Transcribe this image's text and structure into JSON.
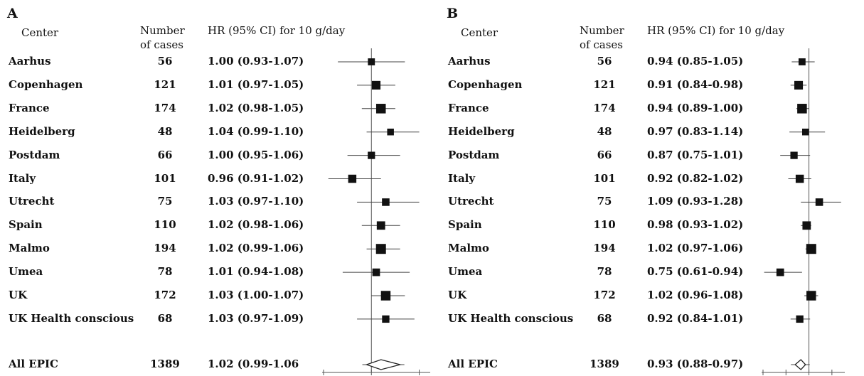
{
  "panels": [
    {
      "letter": "A",
      "headers": {
        "center": "Center",
        "cases_line1": "Number",
        "cases_line2": "of cases",
        "hr": "HR (95% CI) for 10 g/day"
      },
      "rows": [
        {
          "center": "Aarhus",
          "cases": "56",
          "hr": "1.00 (0.93-1.07)"
        },
        {
          "center": "Copenhagen",
          "cases": "121",
          "hr": "1.01 (0.97-1.05)"
        },
        {
          "center": "France",
          "cases": "174",
          "hr": "1.02 (0.98-1.05)"
        },
        {
          "center": "Heidelberg",
          "cases": "48",
          "hr": "1.04 (0.99-1.10)"
        },
        {
          "center": "Postdam",
          "cases": "66",
          "hr": "1.00 (0.95-1.06)"
        },
        {
          "center": "Italy",
          "cases": "101",
          "hr": "0.96 (0.91-1.02)"
        },
        {
          "center": "Utrecht",
          "cases": "75",
          "hr": "1.03 (0.97-1.10)"
        },
        {
          "center": "Spain",
          "cases": "110",
          "hr": "1.02 (0.98-1.06)"
        },
        {
          "center": "Malmo",
          "cases": "194",
          "hr": "1.02 (0.99-1.06)"
        },
        {
          "center": "Umea",
          "cases": "78",
          "hr": "1.01 (0.94-1.08)"
        },
        {
          "center": "UK",
          "cases": "172",
          "hr": "1.03 (1.00-1.07)"
        },
        {
          "center": "UK Health conscious",
          "cases": "68",
          "hr": "1.03 (0.97-1.09)"
        }
      ],
      "total": {
        "center": "All EPIC",
        "cases": "1389",
        "hr": "1.02 (0.99-1.06"
      }
    },
    {
      "letter": "B",
      "headers": {
        "center": "Center",
        "cases_line1": "Number",
        "cases_line2": "of cases",
        "hr": "HR (95% CI) for 10 g/day"
      },
      "rows": [
        {
          "center": "Aarhus",
          "cases": "56",
          "hr": "0.94 (0.85-1.05)"
        },
        {
          "center": "Copenhagen",
          "cases": "121",
          "hr": "0.91 (0.84-0.98)"
        },
        {
          "center": "France",
          "cases": "174",
          "hr": "0.94 (0.89-1.00)"
        },
        {
          "center": "Heidelberg",
          "cases": "48",
          "hr": "0.97 (0.83-1.14)"
        },
        {
          "center": "Postdam",
          "cases": "66",
          "hr": "0.87 (0.75-1.01)"
        },
        {
          "center": "Italy",
          "cases": "101",
          "hr": "0.92 (0.82-1.02)"
        },
        {
          "center": "Utrecht",
          "cases": "75",
          "hr": "1.09 (0.93-1.28)"
        },
        {
          "center": "Spain",
          "cases": "110",
          "hr": "0.98 (0.93-1.02)"
        },
        {
          "center": "Malmo",
          "cases": "194",
          "hr": "1.02 (0.97-1.06)"
        },
        {
          "center": "Umea",
          "cases": "78",
          "hr": "0.75 (0.61-0.94)"
        },
        {
          "center": "UK",
          "cases": "172",
          "hr": "1.02 (0.96-1.08)"
        },
        {
          "center": "UK Health conscious",
          "cases": "68",
          "hr": "0.92 (0.84-1.01)"
        }
      ],
      "total": {
        "center": "All EPIC",
        "cases": "1389",
        "hr": "0.93 (0.88-0.97)"
      }
    }
  ],
  "chart_data": [
    {
      "type": "forest",
      "panel": "A",
      "reference_line": 1.0,
      "xlim": [
        0.9,
        1.12
      ],
      "categories": [
        "Aarhus",
        "Copenhagen",
        "France",
        "Heidelberg",
        "Postdam",
        "Italy",
        "Utrecht",
        "Spain",
        "Malmo",
        "Umea",
        "UK",
        "UK Health conscious"
      ],
      "hr": [
        1.0,
        1.01,
        1.02,
        1.04,
        1.0,
        0.96,
        1.03,
        1.02,
        1.02,
        1.01,
        1.03,
        1.03
      ],
      "ci_low": [
        0.93,
        0.97,
        0.98,
        0.99,
        0.95,
        0.91,
        0.97,
        0.98,
        0.99,
        0.94,
        1.0,
        0.97
      ],
      "ci_high": [
        1.07,
        1.05,
        1.05,
        1.1,
        1.06,
        1.02,
        1.1,
        1.06,
        1.06,
        1.08,
        1.07,
        1.09
      ],
      "cases": [
        56,
        121,
        174,
        48,
        66,
        101,
        75,
        110,
        194,
        78,
        172,
        68
      ],
      "pooled": {
        "label": "All EPIC",
        "hr": 1.02,
        "ci_low": 0.99,
        "ci_high": 1.06
      }
    },
    {
      "type": "forest",
      "panel": "B",
      "reference_line": 1.0,
      "xlim": [
        0.6,
        1.3
      ],
      "categories": [
        "Aarhus",
        "Copenhagen",
        "France",
        "Heidelberg",
        "Postdam",
        "Italy",
        "Utrecht",
        "Spain",
        "Malmo",
        "Umea",
        "UK",
        "UK Health conscious"
      ],
      "hr": [
        0.94,
        0.91,
        0.94,
        0.97,
        0.87,
        0.92,
        1.09,
        0.98,
        1.02,
        0.75,
        1.02,
        0.92
      ],
      "ci_low": [
        0.85,
        0.84,
        0.89,
        0.83,
        0.75,
        0.82,
        0.93,
        0.93,
        0.97,
        0.61,
        0.96,
        0.84
      ],
      "ci_high": [
        1.05,
        0.98,
        1.0,
        1.14,
        1.01,
        1.02,
        1.28,
        1.02,
        1.06,
        0.94,
        1.08,
        1.01
      ],
      "cases": [
        56,
        121,
        174,
        48,
        66,
        101,
        75,
        110,
        194,
        78,
        172,
        68
      ],
      "pooled": {
        "label": "All EPIC",
        "hr": 0.93,
        "ci_low": 0.88,
        "ci_high": 0.97
      }
    }
  ]
}
